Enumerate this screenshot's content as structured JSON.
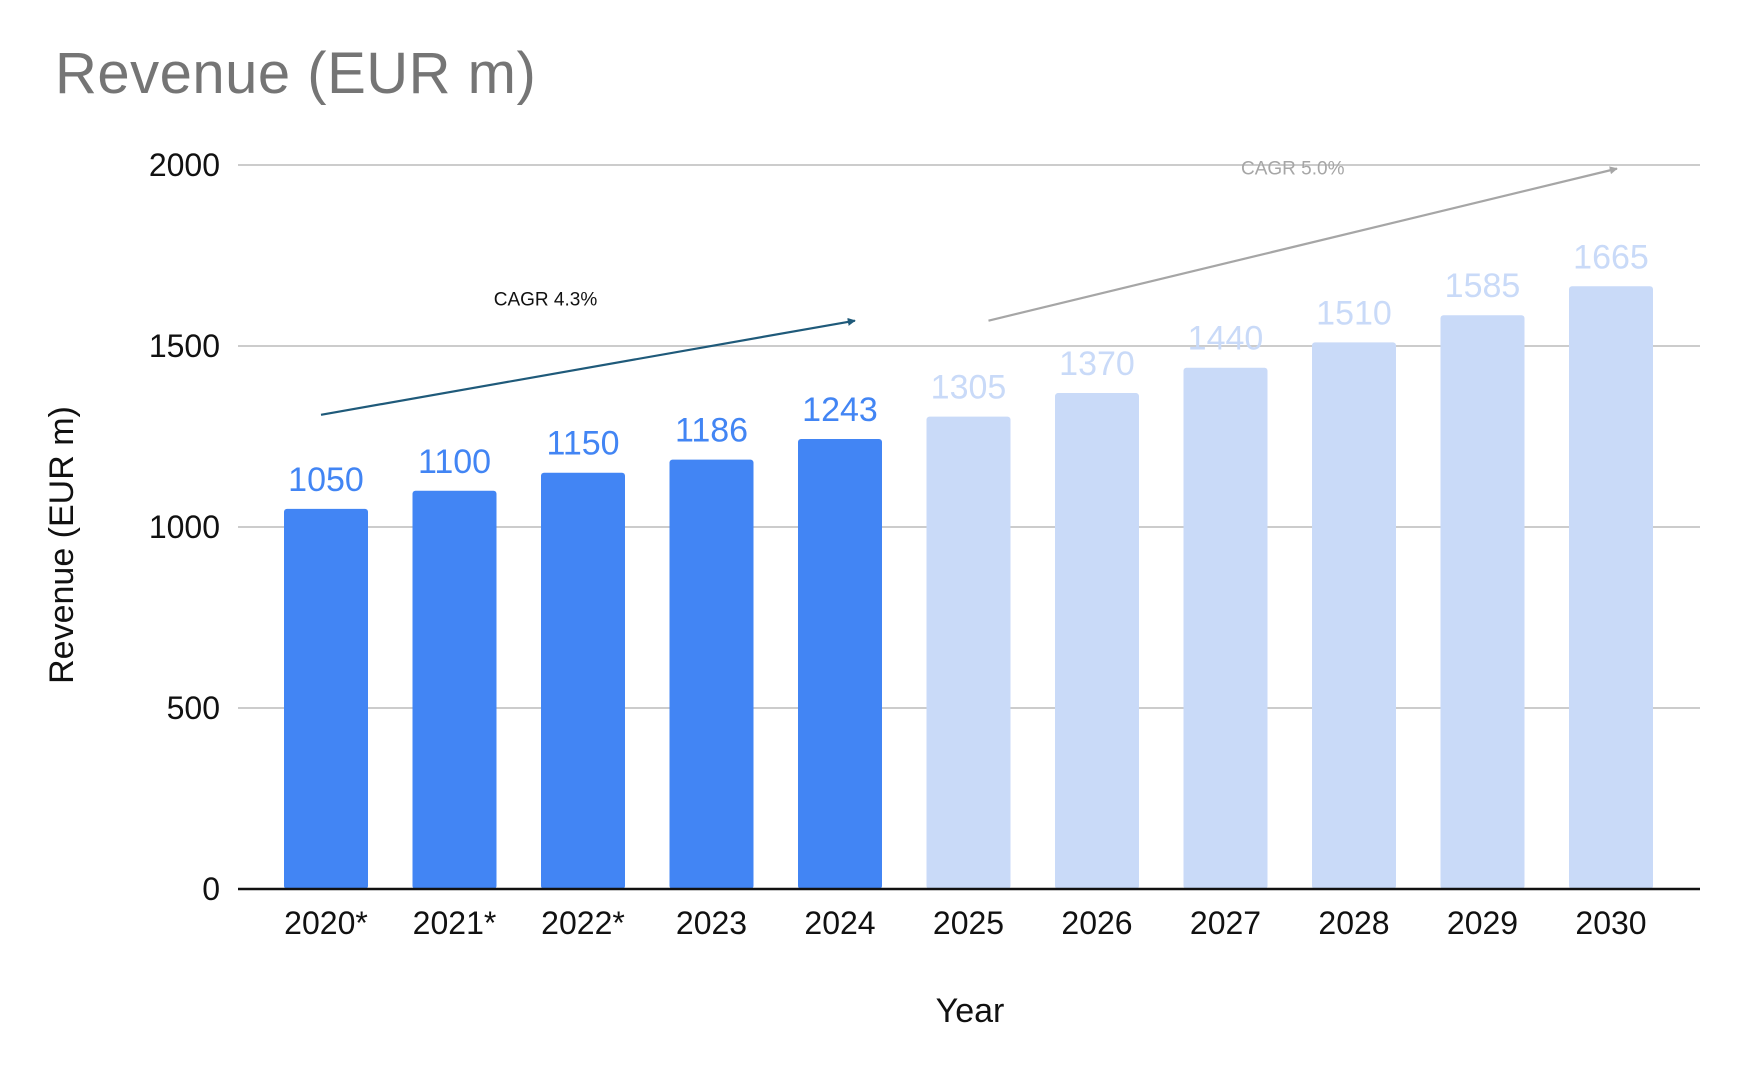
{
  "chart_data": {
    "type": "bar",
    "title": "Revenue (EUR m)",
    "xlabel": "Year",
    "ylabel": "Revenue (EUR m)",
    "categories": [
      "2020*",
      "2021*",
      "2022*",
      "2023",
      "2024",
      "2025",
      "2026",
      "2027",
      "2028",
      "2029",
      "2030"
    ],
    "values": [
      1050,
      1100,
      1150,
      1186,
      1243,
      1305,
      1370,
      1440,
      1510,
      1585,
      1665
    ],
    "data_labels": [
      "1050",
      "1100",
      "1150",
      "1186",
      "1243",
      "1305",
      "1370",
      "1440",
      "1510",
      "1585",
      "1665"
    ],
    "ylim": [
      0,
      2000
    ],
    "yticks": [
      0,
      500,
      1000,
      1500,
      2000
    ],
    "ytick_labels": [
      "0",
      "500",
      "1000",
      "1500",
      "2000"
    ],
    "grid": true,
    "legend": "none",
    "colors": {
      "historical_bar": "#4285f4",
      "forecast_bar": "#c9daf8",
      "historical_label": "#4285f4",
      "forecast_label": "#c9daf8",
      "gridline": "#cccccc",
      "axis": "#111111",
      "historical_arrow": "#1f5a7a",
      "forecast_arrow": "#a6a6a6",
      "forecast_annotation_text": "#a6a6a6"
    },
    "bar_groups": [
      "historical",
      "historical",
      "historical",
      "historical",
      "historical",
      "forecast",
      "forecast",
      "forecast",
      "forecast",
      "forecast",
      "forecast"
    ],
    "annotations": [
      {
        "text": "CAGR 4.3%",
        "type": "arrow",
        "from": {
          "x": "2020*",
          "y": 1310
        },
        "to": {
          "x": "2024",
          "y": 1570
        },
        "style": "historical"
      },
      {
        "text": "CAGR 5.0%",
        "type": "arrow",
        "from": {
          "x": "2025",
          "y": 1570
        },
        "to": {
          "x": "2030",
          "y": 1990
        },
        "style": "forecast"
      }
    ]
  }
}
